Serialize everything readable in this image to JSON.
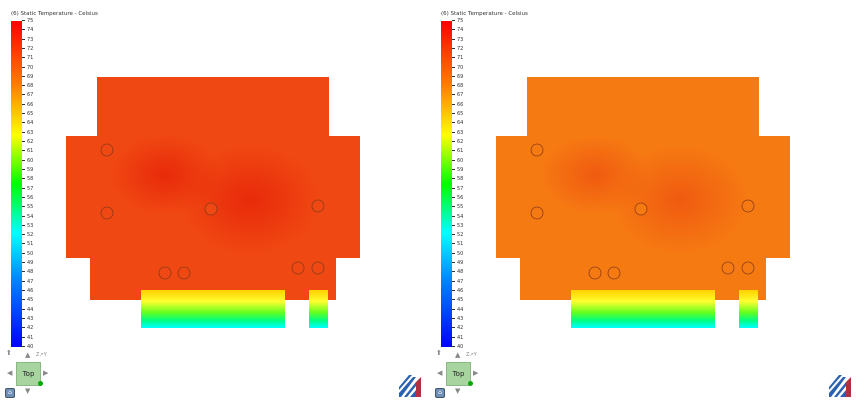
{
  "legend": {
    "title": "(6) Static Temperature - Celsius",
    "ticks": [
      "75",
      "74",
      "73",
      "72",
      "71",
      "70",
      "69",
      "68",
      "67",
      "66",
      "65",
      "64",
      "63",
      "62",
      "61",
      "60",
      "59",
      "58",
      "57",
      "56",
      "55",
      "54",
      "53",
      "52",
      "51",
      "50",
      "49",
      "48",
      "47",
      "46",
      "45",
      "44",
      "43",
      "42",
      "41",
      "40"
    ]
  },
  "views": [
    {
      "name": "left",
      "base_color": "#f04812",
      "hot_color": "#e82a0a"
    },
    {
      "name": "right",
      "base_color": "#f67a12",
      "hot_color": "#f05a10"
    }
  ],
  "nav_cube": {
    "face_label": "Top",
    "home_icon": "home-icon",
    "axis_labels": [
      "Z",
      "Y",
      "X"
    ]
  },
  "logo_icon": "stripes-logo-icon"
}
